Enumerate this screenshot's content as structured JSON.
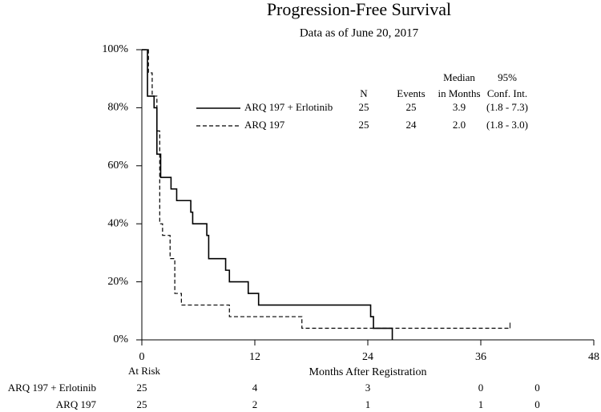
{
  "chart_data": {
    "type": "step",
    "title": "Progression-Free Survival",
    "subtitle": "Data as of June 20, 2017",
    "x_label": "Months After Registration",
    "xlim": [
      0,
      48
    ],
    "xticks": [
      0,
      12,
      24,
      36,
      48
    ],
    "ylim": [
      0,
      100
    ],
    "yticks": [
      {
        "value": 0,
        "label": "0%"
      },
      {
        "value": 20,
        "label": "20%"
      },
      {
        "value": 40,
        "label": "40%"
      },
      {
        "value": 60,
        "label": "60%"
      },
      {
        "value": 80,
        "label": "80%"
      },
      {
        "value": 100,
        "label": "100%"
      }
    ],
    "legend_columns": [
      [
        "N"
      ],
      [
        "Events"
      ],
      [
        "Median",
        "in Months"
      ],
      [
        "95%",
        "Conf. Int."
      ]
    ],
    "at_risk_label": "At Risk",
    "at_risk_times": [
      0,
      12,
      24,
      36,
      42
    ],
    "series": [
      {
        "name": "ARQ 197 + Erlotinib",
        "color": "#000000",
        "dash": false,
        "x": [
          0,
          0.6,
          1.3,
          1.6,
          2.0,
          3.1,
          3.7,
          5.2,
          5.4,
          6.9,
          7.1,
          8.9,
          9.3,
          11.3,
          12.4,
          24.3,
          24.6,
          26.6
        ],
        "values": [
          100,
          84,
          80,
          64,
          56,
          52,
          48,
          44,
          40,
          36,
          28,
          24,
          20,
          16,
          12,
          8,
          4,
          0
        ],
        "n": "25",
        "events": "25",
        "median": "3.9",
        "ci": "(1.8 - 7.3)",
        "at_risk": [
          25,
          4,
          3,
          0,
          0
        ]
      },
      {
        "name": "ARQ 197",
        "color": "#000000",
        "dash": true,
        "x": [
          0,
          0.7,
          1.1,
          1.6,
          1.9,
          2.2,
          3.0,
          3.5,
          4.2,
          9.3,
          17.0,
          39.1
        ],
        "values": [
          100,
          92,
          84,
          72,
          40,
          36,
          28,
          16,
          12,
          8,
          4,
          4
        ],
        "n": "25",
        "events": "24",
        "median": "2.0",
        "ci": "(1.8 - 3.0)",
        "at_risk": [
          25,
          2,
          1,
          1,
          0
        ]
      }
    ]
  }
}
